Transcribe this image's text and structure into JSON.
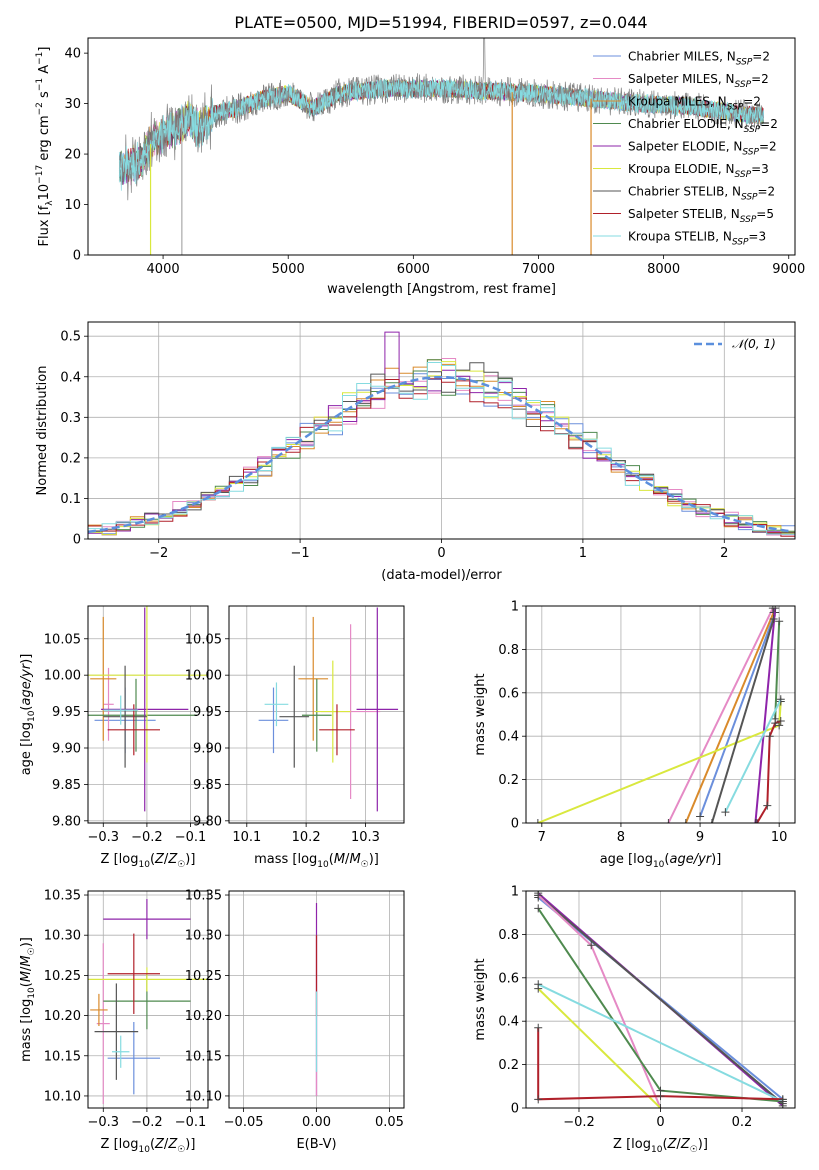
{
  "title": "PLATE=0500, MJD=51994, FIBERID=0597, z=0.044",
  "colors": {
    "Chabrier MILES": "#6b8fdc",
    "Salpeter MILES": "#e58ac5",
    "Kroupa MILES": "#d98a2b",
    "Chabrier ELODIE": "#4f8a4f",
    "Salpeter ELODIE": "#8e24aa",
    "Kroupa ELODIE": "#d9e83e",
    "Chabrier STELIB": "#555555",
    "Salpeter STELIB": "#b0202a",
    "Kroupa STELIB": "#86dbe0"
  },
  "chart_data": [
    {
      "id": "spectrum",
      "type": "line",
      "title": "PLATE=0500, MJD=51994, FIBERID=0597, z=0.044",
      "xlabel": "wavelength [Angstrom, rest frame]",
      "ylabel": "Flux [f_λ 10^-17 erg cm^-2 s^-1 A^-1]",
      "xlim": [
        3400,
        9050
      ],
      "ylim": [
        0,
        43
      ],
      "xticks": [
        4000,
        5000,
        6000,
        7000,
        8000,
        9000
      ],
      "yticks": [
        0,
        10,
        20,
        30,
        40
      ],
      "legend": "top-right",
      "grid": false,
      "data_range": [
        3650,
        8800
      ],
      "continuum": [
        [
          3650,
          17
        ],
        [
          3800,
          18
        ],
        [
          3900,
          22
        ],
        [
          4000,
          24
        ],
        [
          4100,
          25
        ],
        [
          4200,
          27
        ],
        [
          4300,
          25
        ],
        [
          4400,
          28
        ],
        [
          4600,
          29
        ],
        [
          4800,
          31
        ],
        [
          5000,
          32
        ],
        [
          5200,
          29
        ],
        [
          5400,
          32
        ],
        [
          5800,
          33
        ],
        [
          6200,
          33
        ],
        [
          6600,
          32.5
        ],
        [
          7000,
          32
        ],
        [
          7400,
          31
        ],
        [
          7800,
          30
        ],
        [
          8200,
          29.5
        ],
        [
          8600,
          28
        ],
        [
          8800,
          27.5
        ]
      ],
      "series": [
        {
          "label": "Chabrier MILES, N",
          "sub": "SSP",
          "suffix": "=2",
          "color": "#6b8fdc"
        },
        {
          "label": "Salpeter MILES, N",
          "sub": "SSP",
          "suffix": "=2",
          "color": "#e58ac5"
        },
        {
          "label": "Kroupa MILES, N",
          "sub": "SSP",
          "suffix": "=2",
          "color": "#d98a2b"
        },
        {
          "label": "Chabrier ELODIE, N",
          "sub": "SSP",
          "suffix": "=2",
          "color": "#4f8a4f"
        },
        {
          "label": "Salpeter ELODIE, N",
          "sub": "SSP",
          "suffix": "=2",
          "color": "#8e24aa"
        },
        {
          "label": "Kroupa ELODIE, N",
          "sub": "SSP",
          "suffix": "=3",
          "color": "#d9e83e"
        },
        {
          "label": "Chabrier STELIB, N",
          "sub": "SSP",
          "suffix": "=2",
          "color": "#555555"
        },
        {
          "label": "Salpeter STELIB, N",
          "sub": "SSP",
          "suffix": "=5",
          "color": "#b0202a"
        },
        {
          "label": "Kroupa STELIB, N",
          "sub": "SSP",
          "suffix": "=3",
          "color": "#86dbe0"
        }
      ],
      "drops": [
        {
          "x": 3900,
          "color": "#d9e83e"
        },
        {
          "x": 4150,
          "color": "#aaaaaa"
        },
        {
          "x": 6790,
          "color": "#d98a2b"
        },
        {
          "x": 7420,
          "color": "#d98a2b"
        }
      ]
    },
    {
      "id": "residuals",
      "type": "step",
      "xlabel": "(data-model)/error",
      "ylabel": "Normed distribution",
      "xlim": [
        -2.5,
        2.5
      ],
      "ylim": [
        0,
        0.535
      ],
      "xticks": [
        -2,
        -1,
        0,
        1,
        2
      ],
      "yticks": [
        0.0,
        0.1,
        0.2,
        0.3,
        0.4,
        0.5
      ],
      "grid": true,
      "legend": "top-right",
      "gaussian_label": "𝒩(0, 1)",
      "gaussian_color": "#5b8fdd",
      "bin_width": 0.1,
      "spike": {
        "x": -0.35,
        "y": 0.51,
        "color": "#8e24aa"
      }
    },
    {
      "id": "z-age",
      "type": "errorbar",
      "xlabel": "Z [log₁₀(Z/Z☉)]",
      "ylabel": "age  [log₁₀(age/yr)]",
      "xlim": [
        -0.335,
        -0.06
      ],
      "ylim": [
        9.797,
        10.095
      ],
      "xticks": [
        -0.3,
        -0.2,
        -0.1
      ],
      "ytick_labels": [
        "9.80",
        "9.85",
        "9.90",
        "9.95",
        "10.00",
        "10.05"
      ],
      "yticks": [
        9.8,
        9.85,
        9.9,
        9.95,
        10.0,
        10.05
      ],
      "grid": true,
      "points": [
        {
          "x": -0.25,
          "xerr": 0.07,
          "y": 9.938,
          "yerr": 0.045,
          "color": "#6b8fdc"
        },
        {
          "x": -0.288,
          "xerr": 0.012,
          "y": 9.96,
          "yerr": 0.05,
          "color": "#e58ac5"
        },
        {
          "x": -0.3,
          "xerr": 0.03,
          "y": 9.995,
          "yerr": 0.085,
          "color": "#d98a2b"
        },
        {
          "x": -0.225,
          "xerr": 0.14,
          "y": 9.945,
          "yerr": 0.05,
          "color": "#4f8a4f"
        },
        {
          "x": -0.205,
          "xerr": 0.1,
          "y": 9.953,
          "yerr": 0.14,
          "color": "#8e24aa"
        },
        {
          "x": -0.2,
          "xerr": 0.2,
          "y": 10.0,
          "yerr": 0.12,
          "color": "#d9e83e"
        },
        {
          "x": -0.25,
          "xerr": 0.05,
          "y": 9.943,
          "yerr": 0.07,
          "color": "#555555"
        },
        {
          "x": -0.23,
          "xerr": 0.06,
          "y": 9.925,
          "yerr": 0.035,
          "color": "#b0202a"
        },
        {
          "x": -0.26,
          "xerr": 0.04,
          "y": 9.952,
          "yerr": 0.02,
          "color": "#86dbe0"
        }
      ]
    },
    {
      "id": "mass-age",
      "type": "errorbar",
      "xlabel": "mass [log₁₀(M/M☉)]",
      "ylabel": "",
      "xlim": [
        10.07,
        10.365
      ],
      "ylim": [
        9.797,
        10.095
      ],
      "xticks": [
        10.1,
        10.2,
        10.3
      ],
      "xtick_labels": [
        "10.1",
        "10.2",
        "10.3"
      ],
      "yticks": [
        9.8,
        9.85,
        9.9,
        9.95,
        10.0,
        10.05
      ],
      "ytick_labels": [
        "9.80",
        "9.85",
        "9.90",
        "9.95",
        "10.00",
        "10.05"
      ],
      "grid": true,
      "points": [
        {
          "x": 10.145,
          "xerr": 0.025,
          "y": 9.938,
          "yerr": 0.045,
          "color": "#6b8fdc"
        },
        {
          "x": 10.275,
          "xerr": 0.05,
          "y": 9.95,
          "yerr": 0.12,
          "color": "#e58ac5"
        },
        {
          "x": 10.212,
          "xerr": 0.025,
          "y": 9.995,
          "yerr": 0.085,
          "color": "#d98a2b"
        },
        {
          "x": 10.218,
          "xerr": 0.025,
          "y": 9.945,
          "yerr": 0.05,
          "color": "#4f8a4f"
        },
        {
          "x": 10.32,
          "xerr": 0.035,
          "y": 9.953,
          "yerr": 0.14,
          "color": "#8e24aa"
        },
        {
          "x": 10.245,
          "xerr": 0.03,
          "y": 9.95,
          "yerr": 0.07,
          "color": "#d9e83e"
        },
        {
          "x": 10.18,
          "xerr": 0.025,
          "y": 9.943,
          "yerr": 0.07,
          "color": "#555555"
        },
        {
          "x": 10.252,
          "xerr": 0.03,
          "y": 9.925,
          "yerr": 0.035,
          "color": "#b0202a"
        },
        {
          "x": 10.15,
          "xerr": 0.02,
          "y": 9.96,
          "yerr": 0.03,
          "color": "#86dbe0"
        }
      ]
    },
    {
      "id": "cum-age",
      "type": "line",
      "xlabel": "age  [log₁₀(age/yr)]",
      "ylabel": "mass weight",
      "xlim": [
        6.8,
        10.2
      ],
      "ylim": [
        0,
        1.0
      ],
      "xticks": [
        7,
        8,
        9,
        10
      ],
      "yticks": [
        0.0,
        0.2,
        0.4,
        0.6,
        0.8,
        1.0
      ],
      "grid": true,
      "lines": [
        {
          "color": "#6b8fdc",
          "pts": [
            [
              9.0,
              0.03
            ],
            [
              9.95,
              0.97
            ]
          ]
        },
        {
          "color": "#e58ac5",
          "pts": [
            [
              8.6,
              0.0
            ],
            [
              9.92,
              0.99
            ]
          ]
        },
        {
          "color": "#d98a2b",
          "pts": [
            [
              8.82,
              0.0
            ],
            [
              9.93,
              0.97
            ]
          ]
        },
        {
          "color": "#4f8a4f",
          "pts": [
            [
              9.95,
              0.48
            ],
            [
              10.0,
              0.93
            ]
          ]
        },
        {
          "color": "#8e24aa",
          "pts": [
            [
              9.7,
              0.0
            ],
            [
              9.95,
              0.99
            ]
          ]
        },
        {
          "color": "#d9e83e",
          "pts": [
            [
              6.95,
              0.0
            ],
            [
              10.0,
              0.45
            ],
            [
              10.02,
              0.56
            ]
          ]
        },
        {
          "color": "#555555",
          "pts": [
            [
              9.15,
              0.0
            ],
            [
              9.93,
              0.94
            ]
          ]
        },
        {
          "color": "#b0202a",
          "pts": [
            [
              9.72,
              0.0
            ],
            [
              9.85,
              0.08
            ],
            [
              9.88,
              0.4
            ],
            [
              9.95,
              0.46
            ],
            [
              10.02,
              0.47
            ]
          ]
        },
        {
          "color": "#86dbe0",
          "pts": [
            [
              9.32,
              0.05
            ],
            [
              10.02,
              0.57
            ]
          ]
        }
      ]
    },
    {
      "id": "z-mass",
      "type": "errorbar",
      "xlabel": "Z [log₁₀(Z/Z☉)]",
      "ylabel": "mass [log₁₀(M/M☉)]",
      "xlim": [
        -0.335,
        -0.06
      ],
      "ylim": [
        10.085,
        10.355
      ],
      "xticks": [
        -0.3,
        -0.2,
        -0.1
      ],
      "yticks": [
        10.1,
        10.15,
        10.2,
        10.25,
        10.3,
        10.35
      ],
      "ytick_labels": [
        "10.10",
        "10.15",
        "10.20",
        "10.25",
        "10.30",
        "10.35"
      ],
      "grid": true,
      "points": [
        {
          "x": -0.23,
          "xerr": 0.06,
          "y": 10.147,
          "yerr": 0.045,
          "color": "#6b8fdc"
        },
        {
          "x": -0.3,
          "xerr": 0.015,
          "y": 10.19,
          "yerr": 0.1,
          "color": "#e58ac5"
        },
        {
          "x": -0.31,
          "xerr": 0.02,
          "y": 10.207,
          "yerr": 0.02,
          "color": "#d98a2b"
        },
        {
          "x": -0.2,
          "xerr": 0.1,
          "y": 10.218,
          "yerr": 0.035,
          "color": "#4f8a4f"
        },
        {
          "x": -0.2,
          "xerr": 0.1,
          "y": 10.32,
          "yerr": 0.025,
          "color": "#8e24aa"
        },
        {
          "x": -0.2,
          "xerr": 0.14,
          "y": 10.245,
          "yerr": 0.015,
          "color": "#d9e83e"
        },
        {
          "x": -0.27,
          "xerr": 0.05,
          "y": 10.18,
          "yerr": 0.06,
          "color": "#555555"
        },
        {
          "x": -0.23,
          "xerr": 0.06,
          "y": 10.252,
          "yerr": 0.05,
          "color": "#b0202a"
        },
        {
          "x": -0.26,
          "xerr": 0.02,
          "y": 10.155,
          "yerr": 0.02,
          "color": "#86dbe0"
        }
      ]
    },
    {
      "id": "ebv-mass",
      "type": "errorbar",
      "xlabel": "E(B-V)",
      "ylabel": "",
      "xlim": [
        -0.06,
        0.06
      ],
      "ylim": [
        10.085,
        10.355
      ],
      "xticks": [
        -0.05,
        0.0,
        0.05
      ],
      "xtick_labels": [
        "−0.05",
        "0.00",
        "0.05"
      ],
      "yticks": [
        10.1,
        10.15,
        10.2,
        10.25,
        10.3,
        10.35
      ],
      "ytick_labels": [
        "10.10",
        "10.15",
        "10.20",
        "10.25",
        "10.30",
        "10.35"
      ],
      "grid": true,
      "points": [
        {
          "x": 0.0,
          "xerr": 0.0,
          "y": 10.22,
          "yerr": 0.12,
          "color": "#8e24aa"
        },
        {
          "x": 0.0,
          "xerr": 0.0,
          "y": 10.2,
          "yerr": 0.1,
          "color": "#e58ac5"
        },
        {
          "x": 0.0,
          "xerr": 0.0,
          "y": 10.25,
          "yerr": 0.05,
          "color": "#b0202a"
        },
        {
          "x": 0.0,
          "xerr": 0.0,
          "y": 10.18,
          "yerr": 0.05,
          "color": "#86dbe0"
        }
      ]
    },
    {
      "id": "cum-z",
      "type": "line",
      "xlabel": "Z [log₁₀(Z/Z☉)]",
      "ylabel": "mass weight",
      "xlim": [
        -0.33,
        0.33
      ],
      "ylim": [
        0,
        1.0
      ],
      "xticks": [
        -0.2,
        0.0,
        0.2
      ],
      "yticks": [
        0.0,
        0.2,
        0.4,
        0.6,
        0.8,
        1.0
      ],
      "grid": true,
      "lines": [
        {
          "color": "#6b8fdc",
          "pts": [
            [
              -0.3,
              0.97
            ],
            [
              0.3,
              0.04
            ]
          ]
        },
        {
          "color": "#8e24aa",
          "pts": [
            [
              -0.3,
              0.99
            ],
            [
              0.3,
              0.01
            ]
          ]
        },
        {
          "color": "#555555",
          "pts": [
            [
              -0.3,
              0.98
            ],
            [
              0.3,
              0.02
            ]
          ]
        },
        {
          "color": "#e58ac5",
          "pts": [
            [
              -0.3,
              0.98
            ],
            [
              -0.17,
              0.75
            ],
            [
              0.0,
              0.0
            ]
          ]
        },
        {
          "color": "#4f8a4f",
          "pts": [
            [
              -0.3,
              0.92
            ],
            [
              0.0,
              0.08
            ],
            [
              0.3,
              0.03
            ]
          ]
        },
        {
          "color": "#86dbe0",
          "pts": [
            [
              -0.3,
              0.57
            ],
            [
              0.3,
              0.03
            ]
          ]
        },
        {
          "color": "#d9e83e",
          "pts": [
            [
              -0.3,
              0.55
            ],
            [
              0.0,
              0.0
            ]
          ]
        },
        {
          "color": "#b0202a",
          "pts": [
            [
              -0.3,
              0.37
            ],
            [
              -0.3,
              0.04
            ],
            [
              0.0,
              0.055
            ],
            [
              0.3,
              0.04
            ]
          ]
        }
      ]
    }
  ]
}
